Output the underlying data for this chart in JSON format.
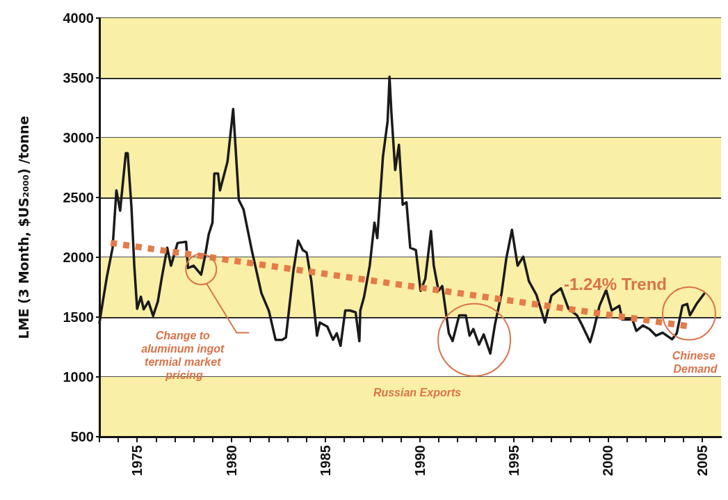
{
  "chart_data": {
    "type": "line",
    "ylabel": "LME (3 Month, $US₂₀₀₀) /tonne",
    "xlim": [
      1973,
      2006
    ],
    "ylim": [
      500,
      4000
    ],
    "yticks": [
      500,
      1000,
      1500,
      2000,
      2500,
      3000,
      3500,
      4000
    ],
    "xticks": [
      {
        "value": 1973,
        "label": null
      },
      {
        "value": 1974,
        "label": null
      },
      1975,
      {
        "value": 1976,
        "label": null
      },
      {
        "value": 1977,
        "label": null
      },
      {
        "value": 1978,
        "label": null
      },
      {
        "value": 1979,
        "label": null
      },
      1980,
      {
        "value": 1981,
        "label": null
      },
      {
        "value": 1982,
        "label": null
      },
      {
        "value": 1983,
        "label": null
      },
      {
        "value": 1984,
        "label": null
      },
      1985,
      {
        "value": 1986,
        "label": null
      },
      {
        "value": 1987,
        "label": null
      },
      {
        "value": 1988,
        "label": null
      },
      {
        "value": 1989,
        "label": null
      },
      1990,
      {
        "value": 1991,
        "label": null
      },
      {
        "value": 1992,
        "label": null
      },
      {
        "value": 1993,
        "label": null
      },
      {
        "value": 1994,
        "label": null
      },
      1995,
      {
        "value": 1996,
        "label": null
      },
      {
        "value": 1997,
        "label": null
      },
      {
        "value": 1998,
        "label": null
      },
      {
        "value": 1999,
        "label": null
      },
      2000,
      {
        "value": 2001,
        "label": null
      },
      {
        "value": 2002,
        "label": null
      },
      {
        "value": 2003,
        "label": null
      },
      {
        "value": 2004,
        "label": null
      },
      2005
    ],
    "grid": "y",
    "marker": "none",
    "line_style": "solid",
    "bands": [
      {
        "axis": "y",
        "from": 500,
        "to": 1000,
        "color": "#f9efa6"
      },
      {
        "axis": "y",
        "from": 1500,
        "to": 2000,
        "color": "#f9efa6"
      },
      {
        "axis": "y",
        "from": 2500,
        "to": 3000,
        "color": "#f9efa6"
      },
      {
        "axis": "y",
        "from": 3500,
        "to": 4000,
        "color": "#f9efa6"
      }
    ],
    "series": [
      {
        "color": "#1a1a1a",
        "x": [
          1973.0,
          1973.2,
          1973.4,
          1973.7,
          1973.9,
          1974.1,
          1974.4,
          1974.5,
          1974.7,
          1974.85,
          1975.0,
          1975.2,
          1975.35,
          1975.6,
          1975.85,
          1976.1,
          1976.3,
          1976.6,
          1976.8,
          1977.15,
          1977.6,
          1977.7,
          1978.0,
          1978.4,
          1978.6,
          1978.8,
          1979.0,
          1979.1,
          1979.3,
          1979.4,
          1979.8,
          1980.1,
          1980.4,
          1980.65,
          1981.1,
          1981.6,
          1982.0,
          1982.35,
          1982.7,
          1982.9,
          1983.3,
          1983.55,
          1983.8,
          1984.0,
          1984.25,
          1984.55,
          1984.7,
          1985.1,
          1985.4,
          1985.6,
          1985.8,
          1986.05,
          1986.3,
          1986.6,
          1986.8,
          1986.85,
          1987.05,
          1987.35,
          1987.6,
          1987.75,
          1988.05,
          1988.3,
          1988.4,
          1988.5,
          1988.7,
          1988.9,
          1989.1,
          1989.3,
          1989.5,
          1989.8,
          1990.05,
          1990.3,
          1990.6,
          1990.75,
          1991.0,
          1991.2,
          1991.55,
          1991.75,
          1992.1,
          1992.45,
          1992.65,
          1992.85,
          1993.15,
          1993.4,
          1993.75,
          1994.0,
          1994.35,
          1994.6,
          1994.9,
          1995.2,
          1995.5,
          1995.8,
          1996.2,
          1996.65,
          1997.0,
          1997.5,
          1997.9,
          1998.35,
          1998.6,
          1999.05,
          1999.25,
          1999.55,
          1999.9,
          2000.2,
          2000.6,
          2000.75,
          2001.3,
          2001.5,
          2001.85,
          2002.2,
          2002.55,
          2002.9,
          2003.4,
          2003.65,
          2003.95,
          2004.2,
          2004.35,
          2004.7,
          2005.1
        ],
        "values": [
          1450,
          1650,
          1840,
          2080,
          2560,
          2390,
          2870,
          2870,
          2420,
          1930,
          1570,
          1670,
          1565,
          1630,
          1510,
          1630,
          1820,
          2080,
          1930,
          2120,
          2130,
          1910,
          1930,
          1855,
          2005,
          2190,
          2290,
          2700,
          2700,
          2560,
          2800,
          3240,
          2480,
          2400,
          2050,
          1700,
          1550,
          1310,
          1310,
          1330,
          1890,
          2140,
          2060,
          2040,
          1800,
          1345,
          1455,
          1420,
          1310,
          1365,
          1260,
          1555,
          1555,
          1540,
          1300,
          1555,
          1670,
          1930,
          2290,
          2160,
          2840,
          3140,
          3510,
          3210,
          2730,
          2940,
          2440,
          2460,
          2080,
          2060,
          1720,
          1820,
          2220,
          1930,
          1720,
          1760,
          1365,
          1300,
          1515,
          1515,
          1345,
          1400,
          1270,
          1355,
          1195,
          1440,
          1700,
          1990,
          2230,
          1930,
          2005,
          1800,
          1685,
          1455,
          1680,
          1740,
          1570,
          1515,
          1440,
          1290,
          1400,
          1595,
          1725,
          1555,
          1595,
          1480,
          1480,
          1385,
          1430,
          1400,
          1345,
          1370,
          1315,
          1365,
          1595,
          1610,
          1515,
          1610,
          1695
        ]
      },
      {
        "color": "#e47b48",
        "line_style": "dotted",
        "x": [
          1973.6,
          2004.2
        ],
        "values": [
          2120,
          1425
        ]
      }
    ],
    "annotations": [
      "-1.24% Trend",
      "Change to aluminum ingot termial market pricing",
      "Russian Exports",
      "Chinese Demand"
    ]
  }
}
